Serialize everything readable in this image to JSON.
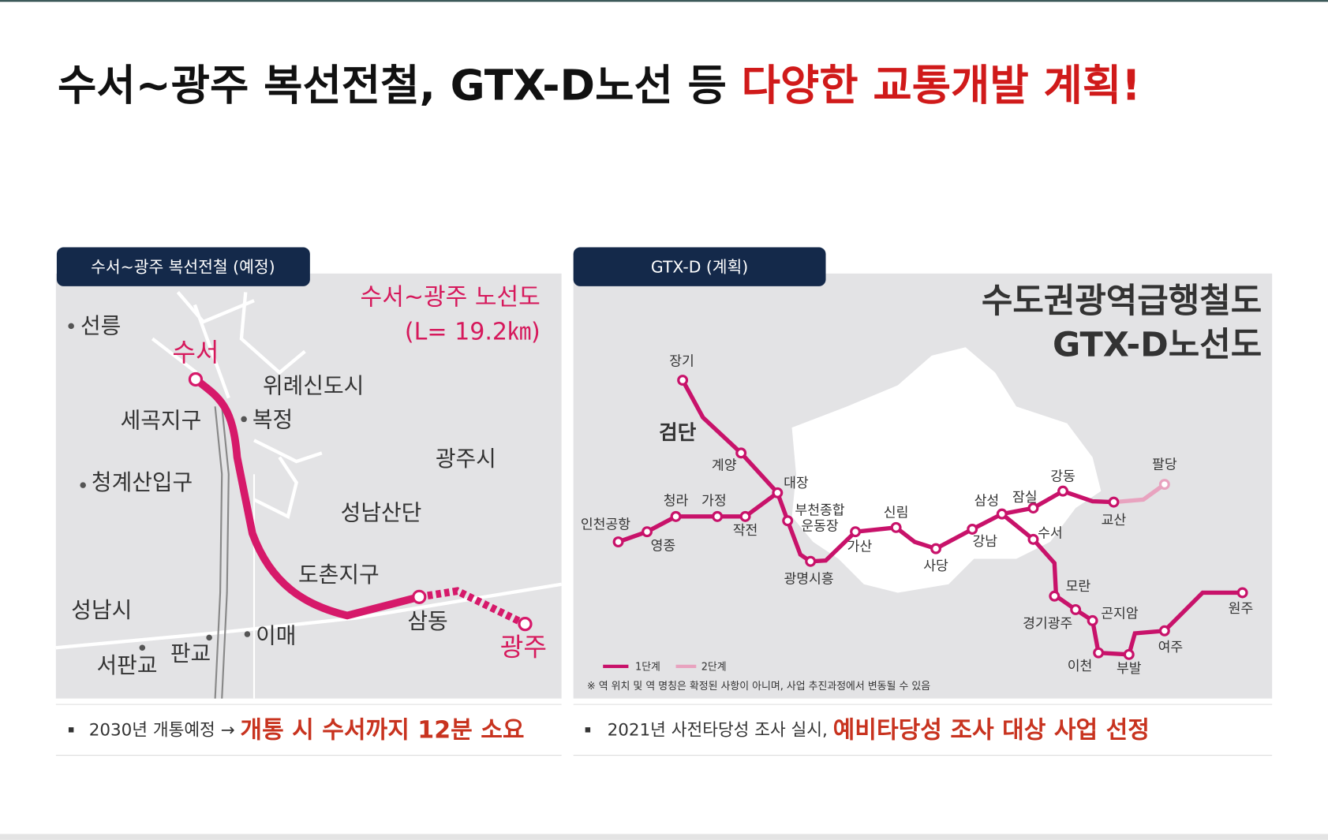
{
  "header": {
    "title_black": "수서~광주 복선전철, GTX-D노선 등",
    "title_red": "다양한 교통개발 계획!"
  },
  "left_panel": {
    "tab": "수서~광주 복선전철 (예정)",
    "map_title": "수서~광주 노선도",
    "map_length": "(L= 19.2㎞)",
    "places": [
      "선릉",
      "수서",
      "위례신도시",
      "세곡지구",
      "복정",
      "광주시",
      "청계산입구",
      "성남산단",
      "도촌지구",
      "성남시",
      "삼동",
      "이매",
      "광주",
      "판교",
      "서판교"
    ],
    "note_prefix": "2030년 개통예정 →",
    "note_highlight": "개통 시 수서까지 12분 소요"
  },
  "right_panel": {
    "tab": "GTX-D (계획)",
    "map_title_1": "수도권광역급행철도",
    "map_title_2": "GTX-D노선도",
    "stations": [
      "장기",
      "검단",
      "계양",
      "대장",
      "청라",
      "가정",
      "작전",
      "인천공항",
      "영종",
      "부천종합",
      "운동장",
      "광명시흥",
      "가산",
      "신림",
      "사당",
      "강남",
      "삼성",
      "잠실",
      "강동",
      "교산",
      "팔당",
      "수서",
      "모란",
      "곤지암",
      "경기광주",
      "이천",
      "부발",
      "여주",
      "원주"
    ],
    "legend": [
      "1단계",
      "2단계"
    ],
    "footnote": "※ 역 위치 및 역 명칭은 확정된 사항이 아니며, 사업 추진과정에서 변동될 수 있음",
    "note_prefix": "2021년 사전타당성 조사 실시,",
    "note_highlight": "예비타당성 조사 대상 사업 선정"
  }
}
